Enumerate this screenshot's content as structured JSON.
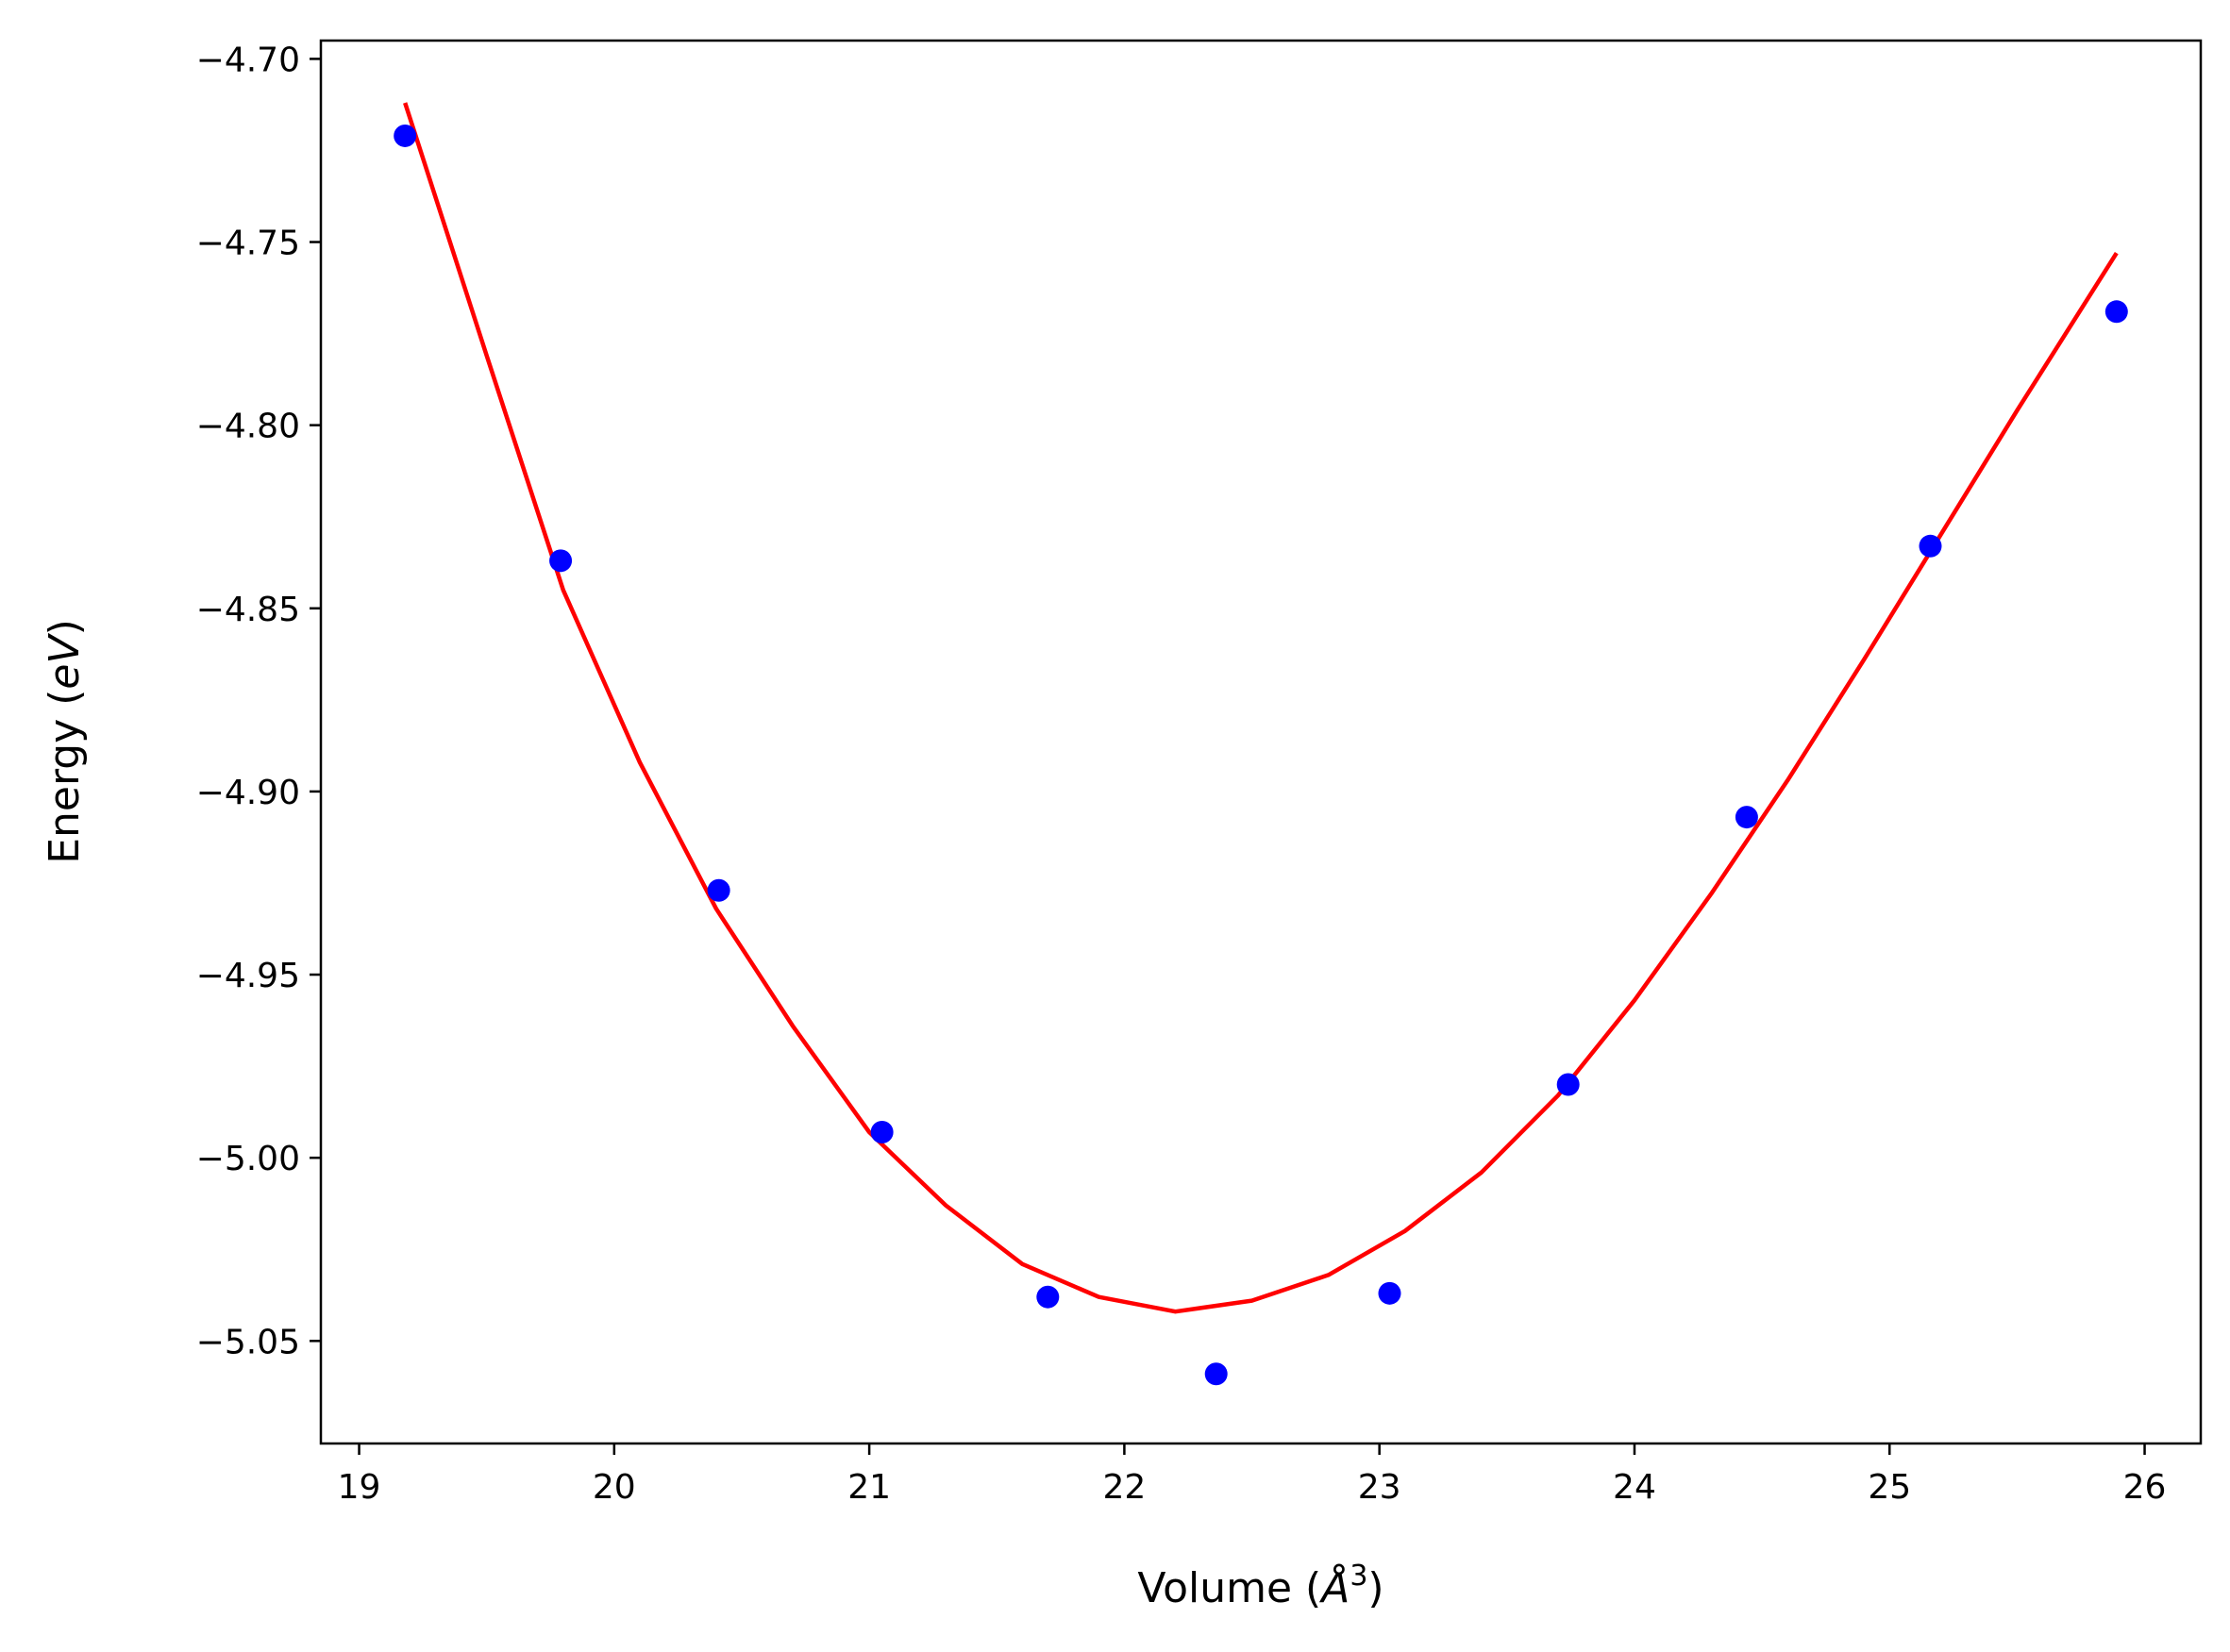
{
  "chart_data": {
    "type": "scatter",
    "xlabel": {
      "prefix": "Volume (",
      "symbol": "Å",
      "superscript": "3",
      "suffix": ")"
    },
    "ylabel": {
      "prefix": "Energy (",
      "symbol": "eV",
      "suffix": ")"
    },
    "xlim": [
      18.85,
      26.22
    ],
    "ylim": [
      -5.078,
      -4.695
    ],
    "x_ticks": [
      19,
      20,
      21,
      22,
      23,
      24,
      25,
      26
    ],
    "x_tick_labels": [
      "19",
      "20",
      "21",
      "22",
      "23",
      "24",
      "25",
      "26"
    ],
    "y_ticks": [
      -4.7,
      -4.75,
      -4.8,
      -4.85,
      -4.9,
      -4.95,
      -5.0,
      -5.05
    ],
    "y_tick_labels": [
      "−4.70",
      "−4.75",
      "−4.80",
      "−4.85",
      "−4.90",
      "−4.95",
      "−5.00",
      "−5.05"
    ],
    "grid": false,
    "series": [
      {
        "kind": "points",
        "color": "#0000ff",
        "x": [
          19.18,
          19.79,
          20.41,
          21.05,
          21.7,
          22.36,
          23.04,
          23.74,
          24.44,
          25.16,
          25.89
        ],
        "y": [
          -4.721,
          -4.837,
          -4.927,
          -4.993,
          -5.038,
          -5.059,
          -5.037,
          -4.98,
          -4.907,
          -4.833,
          -4.769
        ]
      },
      {
        "kind": "fit-line",
        "color": "#ff0000",
        "x": [
          19.18,
          19.5,
          19.8,
          20.1,
          20.4,
          20.7,
          21.0,
          21.3,
          21.6,
          21.9,
          22.2,
          22.5,
          22.8,
          23.1,
          23.4,
          23.7,
          24.0,
          24.3,
          24.6,
          24.9,
          25.2,
          25.5,
          25.89
        ],
        "y": [
          -4.712,
          -4.781,
          -4.845,
          -4.892,
          -4.932,
          -4.964,
          -4.993,
          -5.013,
          -5.029,
          -5.038,
          -5.042,
          -5.039,
          -5.032,
          -5.02,
          -5.004,
          -4.983,
          -4.957,
          -4.928,
          -4.897,
          -4.864,
          -4.83,
          -4.796,
          -4.753
        ]
      }
    ]
  }
}
